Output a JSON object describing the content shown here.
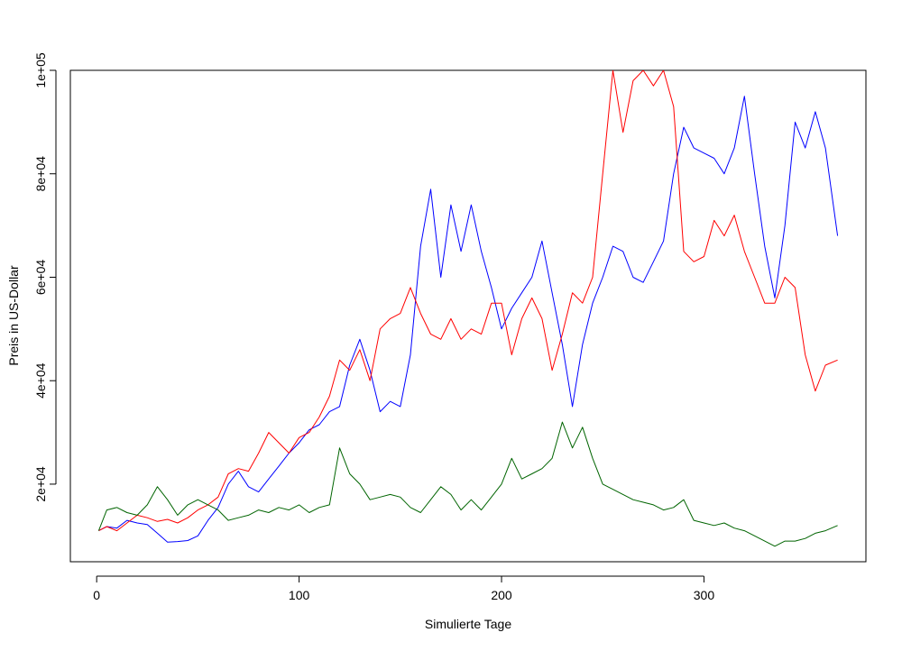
{
  "chart_data": {
    "type": "line",
    "title": "",
    "xlabel": "Simulierte Tage",
    "ylabel": "Preis in US-Dollar",
    "xlim": [
      -13,
      380
    ],
    "ylim": [
      5000,
      100000
    ],
    "x_ticks": [
      0,
      100,
      200,
      300
    ],
    "x_tick_labels": [
      "0",
      "100",
      "200",
      "300"
    ],
    "y_ticks": [
      20000,
      40000,
      60000,
      80000,
      100000
    ],
    "y_tick_labels": [
      "2e+04",
      "4e+04",
      "6e+04",
      "8e+04",
      "1e+05"
    ],
    "grid": false,
    "legend": "none",
    "series": [
      {
        "color": "#0000ff",
        "x": [
          1,
          5,
          10,
          15,
          20,
          25,
          30,
          35,
          40,
          45,
          50,
          55,
          60,
          65,
          70,
          75,
          80,
          85,
          90,
          95,
          100,
          105,
          110,
          115,
          120,
          125,
          130,
          135,
          140,
          145,
          150,
          155,
          160,
          165,
          170,
          175,
          180,
          185,
          190,
          195,
          200,
          205,
          210,
          215,
          220,
          225,
          230,
          235,
          240,
          245,
          250,
          255,
          260,
          265,
          270,
          275,
          280,
          285,
          290,
          295,
          300,
          305,
          310,
          315,
          320,
          325,
          330,
          335,
          340,
          345,
          350,
          355,
          360,
          366
        ],
        "values": [
          11000,
          11800,
          11500,
          13000,
          12500,
          12200,
          10500,
          8800,
          8900,
          9100,
          10000,
          13000,
          15500,
          20000,
          22500,
          19500,
          18500,
          21000,
          23500,
          26000,
          28000,
          30500,
          31500,
          34000,
          35000,
          43000,
          48000,
          42000,
          34000,
          36000,
          35000,
          45000,
          66000,
          77000,
          60000,
          74000,
          65000,
          74000,
          65000,
          58000,
          50000,
          54000,
          57000,
          60000,
          67000,
          57000,
          47000,
          35000,
          47000,
          55000,
          60000,
          66000,
          65000,
          60000,
          59000,
          63000,
          67000,
          80000,
          89000,
          85000,
          84000,
          83000,
          80000,
          85000,
          95000,
          80000,
          66000,
          56000,
          70000,
          90000,
          85000,
          92000,
          85000,
          68000
        ]
      },
      {
        "color": "#ff0000",
        "x": [
          1,
          5,
          10,
          15,
          20,
          25,
          30,
          35,
          40,
          45,
          50,
          55,
          60,
          65,
          70,
          75,
          80,
          85,
          90,
          95,
          100,
          105,
          110,
          115,
          120,
          125,
          130,
          135,
          140,
          145,
          150,
          155,
          160,
          165,
          170,
          175,
          180,
          185,
          190,
          195,
          200,
          205,
          210,
          215,
          220,
          225,
          230,
          235,
          240,
          245,
          250,
          255,
          260,
          265,
          270,
          275,
          280,
          285,
          290,
          295,
          300,
          305,
          310,
          315,
          320,
          325,
          330,
          335,
          340,
          345,
          350,
          355,
          360,
          366
        ],
        "values": [
          11000,
          11800,
          11000,
          12500,
          14000,
          13500,
          12800,
          13200,
          12500,
          13500,
          15000,
          16000,
          17500,
          22000,
          23000,
          22500,
          26000,
          30000,
          28000,
          26000,
          29000,
          30000,
          33000,
          37000,
          44000,
          42000,
          46000,
          40000,
          50000,
          52000,
          53000,
          58000,
          53000,
          49000,
          48000,
          52000,
          48000,
          50000,
          49000,
          55000,
          55000,
          45000,
          52000,
          56000,
          52000,
          42000,
          49000,
          57000,
          55000,
          60000,
          80000,
          100000,
          88000,
          98000,
          100000,
          97000,
          100000,
          93000,
          65000,
          63000,
          64000,
          71000,
          68000,
          72000,
          65000,
          60000,
          55000,
          55000,
          60000,
          58000,
          45000,
          38000,
          43000,
          44000
        ]
      },
      {
        "color": "#006400",
        "x": [
          1,
          5,
          10,
          15,
          20,
          25,
          30,
          35,
          40,
          45,
          50,
          55,
          60,
          65,
          70,
          75,
          80,
          85,
          90,
          95,
          100,
          105,
          110,
          115,
          120,
          125,
          130,
          135,
          140,
          145,
          150,
          155,
          160,
          165,
          170,
          175,
          180,
          185,
          190,
          195,
          200,
          205,
          210,
          215,
          220,
          225,
          230,
          235,
          240,
          245,
          250,
          255,
          260,
          265,
          270,
          275,
          280,
          285,
          290,
          295,
          300,
          305,
          310,
          315,
          320,
          325,
          330,
          335,
          340,
          345,
          350,
          355,
          360,
          366
        ],
        "values": [
          11000,
          15000,
          15500,
          14500,
          14000,
          16000,
          19500,
          17000,
          14000,
          16000,
          17000,
          16000,
          15000,
          13000,
          13500,
          14000,
          15000,
          14500,
          15500,
          15000,
          16000,
          14500,
          15500,
          16000,
          27000,
          22000,
          20000,
          17000,
          17500,
          18000,
          17500,
          15500,
          14500,
          17000,
          19500,
          18000,
          15000,
          17000,
          15000,
          17500,
          20000,
          25000,
          21000,
          22000,
          23000,
          25000,
          32000,
          27000,
          31000,
          25000,
          20000,
          19000,
          18000,
          17000,
          16500,
          16000,
          15000,
          15500,
          17000,
          13000,
          12500,
          12000,
          12500,
          11500,
          11000,
          10000,
          9000,
          8000,
          9000,
          9000,
          9500,
          10500,
          11000,
          12000
        ]
      }
    ]
  }
}
